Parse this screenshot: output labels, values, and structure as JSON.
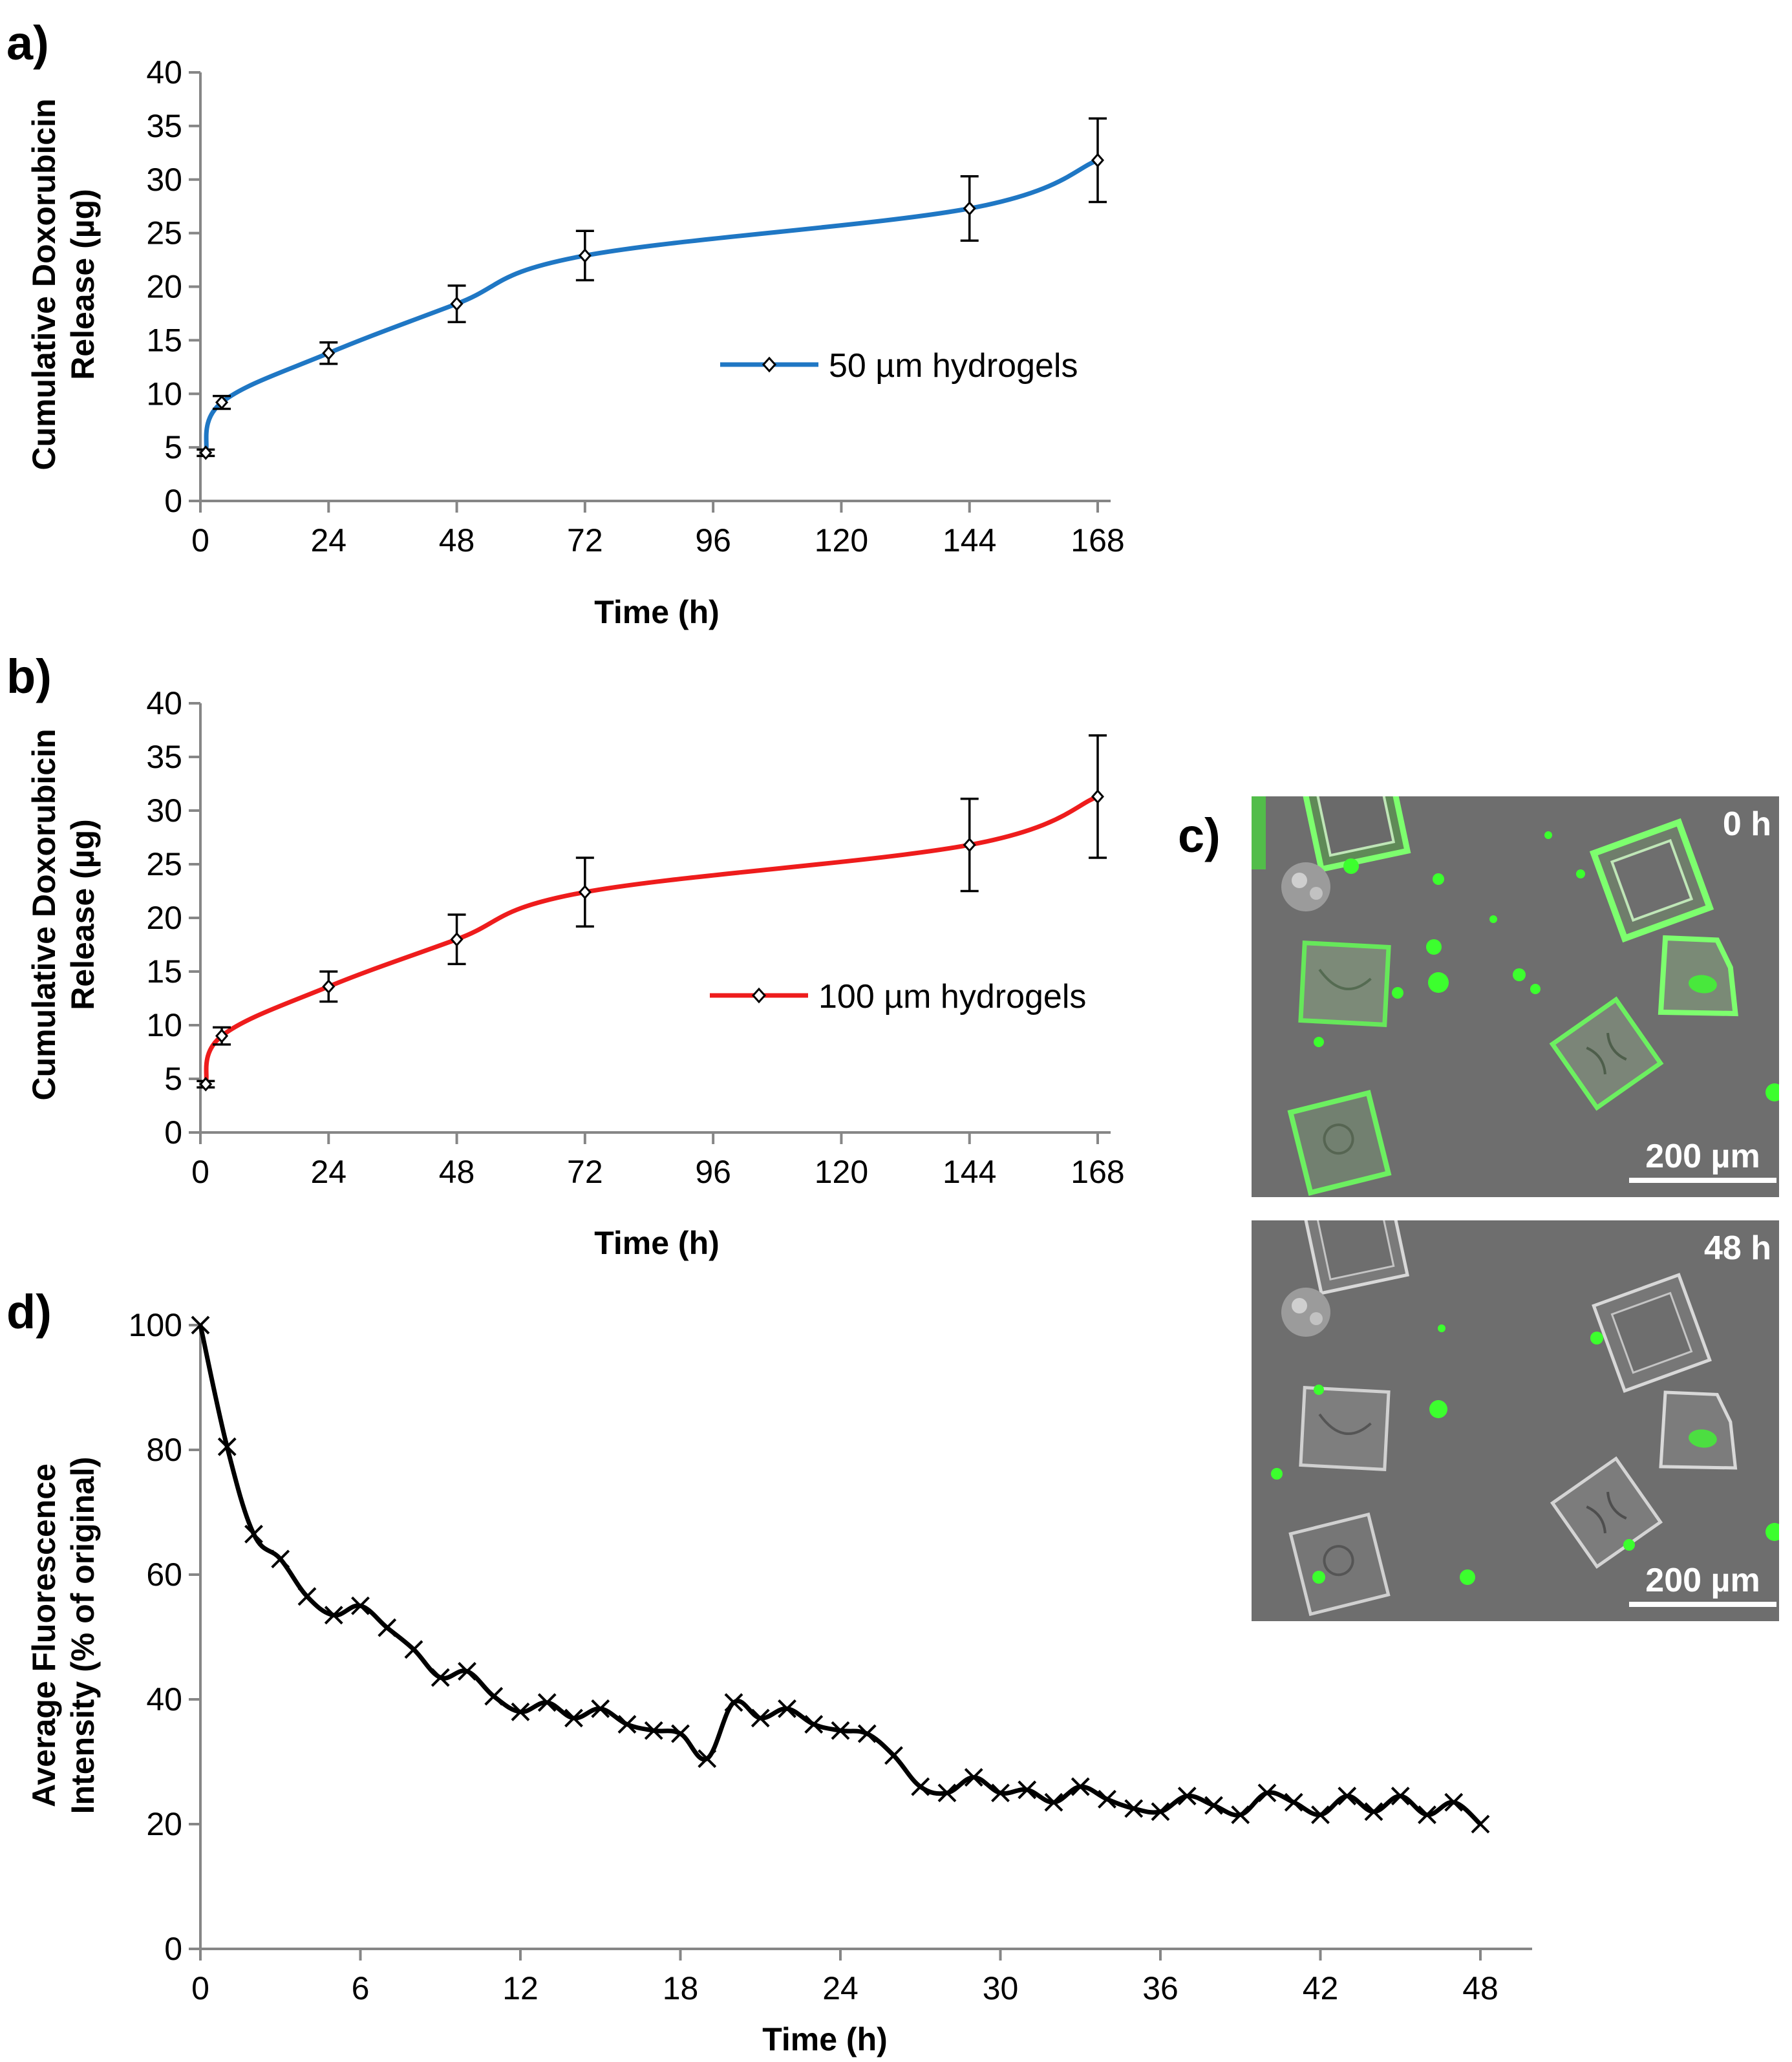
{
  "panels": {
    "a": "a)",
    "b": "b)",
    "c": "c)",
    "d": "d)"
  },
  "micrographs": {
    "top_label": "0 h",
    "bottom_label": "48 h",
    "scale_bar": "200 µm"
  },
  "colors": {
    "series_a": "#1f77c4",
    "series_b": "#ee1c1c",
    "series_d": "#000000",
    "micro_background": "#6e6e6e",
    "fluorescence": "#3cff2e"
  },
  "chart_data": [
    {
      "id": "a",
      "type": "line",
      "title": "",
      "xlabel": "Time (h)",
      "ylabel_line1": "Cumulative Doxorubicin",
      "ylabel_line2": "Release (µg)",
      "xlim": [
        0,
        168
      ],
      "ylim": [
        0,
        40
      ],
      "xticks": [
        0,
        24,
        48,
        72,
        96,
        120,
        144,
        168
      ],
      "yticks": [
        0,
        5,
        10,
        15,
        20,
        25,
        30,
        35,
        40
      ],
      "legend_position": "right",
      "series": [
        {
          "name": "50 µm hydrogels",
          "x": [
            1,
            4,
            24,
            48,
            72,
            144,
            168
          ],
          "y": [
            4.5,
            9.2,
            13.8,
            18.4,
            22.9,
            27.3,
            31.8
          ],
          "error": [
            0.3,
            0.6,
            1.0,
            1.7,
            2.3,
            3.0,
            3.9
          ]
        }
      ]
    },
    {
      "id": "b",
      "type": "line",
      "title": "",
      "xlabel": "Time (h)",
      "ylabel_line1": "Cumulative Doxorubicin",
      "ylabel_line2": "Release (µg)",
      "xlim": [
        0,
        168
      ],
      "ylim": [
        0,
        40
      ],
      "xticks": [
        0,
        24,
        48,
        72,
        96,
        120,
        144,
        168
      ],
      "yticks": [
        0,
        5,
        10,
        15,
        20,
        25,
        30,
        35,
        40
      ],
      "legend_position": "right",
      "series": [
        {
          "name": "100 µm hydrogels",
          "x": [
            1,
            4,
            24,
            48,
            72,
            144,
            168
          ],
          "y": [
            4.5,
            9.0,
            13.6,
            18.0,
            22.4,
            26.8,
            31.3
          ],
          "error": [
            0.3,
            0.8,
            1.4,
            2.3,
            3.2,
            4.3,
            5.7
          ]
        }
      ]
    },
    {
      "id": "d",
      "type": "line",
      "title": "",
      "xlabel": "Time (h)",
      "ylabel_line1": "Average Fluorescence",
      "ylabel_line2": "Intensity (% of original)",
      "xlim": [
        0,
        50
      ],
      "ylim": [
        0,
        100
      ],
      "xticks": [
        0,
        6,
        12,
        18,
        24,
        30,
        36,
        42,
        48
      ],
      "yticks": [
        0,
        20,
        40,
        60,
        80,
        100
      ],
      "series": [
        {
          "name": "",
          "x": [
            0,
            1,
            2,
            3,
            4,
            5,
            6,
            7,
            8,
            9,
            10,
            11,
            12,
            13,
            14,
            15,
            16,
            17,
            18,
            19,
            20,
            21,
            22,
            23,
            24,
            25,
            26,
            27,
            28,
            29,
            30,
            31,
            32,
            33,
            34,
            35,
            36,
            37,
            38,
            39,
            40,
            41,
            42,
            43,
            44,
            45,
            46,
            47,
            48
          ],
          "y": [
            100,
            80.5,
            66.5,
            62.5,
            56.5,
            53.5,
            55,
            51.5,
            48,
            43.5,
            44.5,
            40.5,
            38,
            39.5,
            37,
            38.5,
            36,
            35,
            34.5,
            30.5,
            39.5,
            37,
            38.5,
            36,
            35,
            34.5,
            31,
            26,
            25,
            27.5,
            25,
            25.5,
            23.5,
            26,
            24,
            22.5,
            22,
            24.5,
            23,
            21.5,
            25,
            23.5,
            21.5,
            24.5,
            22,
            24.5,
            21.5,
            23.5,
            20
          ]
        }
      ]
    }
  ]
}
